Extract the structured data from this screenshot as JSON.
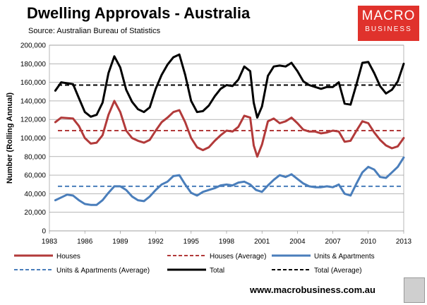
{
  "title": "Dwelling Approvals - Australia",
  "source": "Source: Australian Bureau of Statistics",
  "logo": {
    "line1": "MACRO",
    "line2": "BUSINESS",
    "color": "#e0322c"
  },
  "website": "www.macrobusiness.com.au",
  "chart_data": {
    "type": "line",
    "ylabel": "Number (Rolling Annual)",
    "xlim": [
      1983,
      2013
    ],
    "ylim": [
      0,
      200000
    ],
    "xticks": [
      1983,
      1986,
      1989,
      1992,
      1995,
      1998,
      2001,
      2004,
      2007,
      2010,
      2013
    ],
    "yticks": [
      0,
      20000,
      40000,
      60000,
      80000,
      100000,
      120000,
      140000,
      160000,
      180000,
      200000
    ],
    "ytick_labels": [
      "0",
      "20,000",
      "40,000",
      "60,000",
      "80,000",
      "100,000",
      "120,000",
      "140,000",
      "160,000",
      "180,000",
      "200,000"
    ],
    "grid": true,
    "legend_position": "bottom",
    "series": [
      {
        "name": "Houses",
        "color": "#b23a3a",
        "style": "solid",
        "points": [
          [
            1983.5,
            117000
          ],
          [
            1984,
            122000
          ],
          [
            1985,
            121000
          ],
          [
            1985.5,
            113000
          ],
          [
            1986,
            100000
          ],
          [
            1986.5,
            94000
          ],
          [
            1987,
            95000
          ],
          [
            1987.5,
            103000
          ],
          [
            1988,
            125000
          ],
          [
            1988.5,
            140000
          ],
          [
            1989,
            128000
          ],
          [
            1989.5,
            108000
          ],
          [
            1990,
            100000
          ],
          [
            1990.5,
            97000
          ],
          [
            1991,
            95000
          ],
          [
            1991.5,
            98000
          ],
          [
            1992,
            108000
          ],
          [
            1992.5,
            117000
          ],
          [
            1993,
            122000
          ],
          [
            1993.5,
            128000
          ],
          [
            1994,
            130000
          ],
          [
            1994.5,
            117000
          ],
          [
            1995,
            100000
          ],
          [
            1995.5,
            90000
          ],
          [
            1996,
            87000
          ],
          [
            1996.5,
            90000
          ],
          [
            1997,
            97000
          ],
          [
            1997.5,
            103000
          ],
          [
            1998,
            108000
          ],
          [
            1998.5,
            107000
          ],
          [
            1999,
            112000
          ],
          [
            1999.5,
            124000
          ],
          [
            2000,
            122000
          ],
          [
            2000.3,
            92000
          ],
          [
            2000.6,
            80000
          ],
          [
            2001,
            93000
          ],
          [
            2001.5,
            118000
          ],
          [
            2002,
            121000
          ],
          [
            2002.5,
            116000
          ],
          [
            2003,
            118000
          ],
          [
            2003.5,
            122000
          ],
          [
            2004,
            116000
          ],
          [
            2004.5,
            109000
          ],
          [
            2005,
            107000
          ],
          [
            2005.5,
            107000
          ],
          [
            2006,
            105000
          ],
          [
            2006.5,
            106000
          ],
          [
            2007,
            108000
          ],
          [
            2007.5,
            107000
          ],
          [
            2008,
            96000
          ],
          [
            2008.5,
            97000
          ],
          [
            2009,
            108000
          ],
          [
            2009.5,
            118000
          ],
          [
            2010,
            116000
          ],
          [
            2010.5,
            106000
          ],
          [
            2011,
            98000
          ],
          [
            2011.5,
            92000
          ],
          [
            2012,
            89000
          ],
          [
            2012.5,
            91000
          ],
          [
            2013,
            100000
          ]
        ]
      },
      {
        "name": "Houses (Average)",
        "color": "#b23a3a",
        "style": "dashed",
        "value": 108000
      },
      {
        "name": "Units & Apartments",
        "color": "#4a7ebb",
        "style": "solid",
        "points": [
          [
            1983.5,
            33000
          ],
          [
            1984,
            36000
          ],
          [
            1984.5,
            39000
          ],
          [
            1985,
            38000
          ],
          [
            1985.5,
            33000
          ],
          [
            1986,
            29000
          ],
          [
            1986.5,
            28000
          ],
          [
            1987,
            28000
          ],
          [
            1987.5,
            33000
          ],
          [
            1988,
            41000
          ],
          [
            1988.5,
            48000
          ],
          [
            1989,
            48000
          ],
          [
            1989.5,
            44000
          ],
          [
            1990,
            37000
          ],
          [
            1990.5,
            33000
          ],
          [
            1991,
            32000
          ],
          [
            1991.5,
            37000
          ],
          [
            1992,
            44000
          ],
          [
            1992.5,
            50000
          ],
          [
            1993,
            53000
          ],
          [
            1993.5,
            59000
          ],
          [
            1994,
            60000
          ],
          [
            1994.5,
            50000
          ],
          [
            1995,
            41000
          ],
          [
            1995.5,
            38000
          ],
          [
            1996,
            42000
          ],
          [
            1996.5,
            44000
          ],
          [
            1997,
            46000
          ],
          [
            1997.5,
            49000
          ],
          [
            1998,
            50000
          ],
          [
            1998.5,
            49000
          ],
          [
            1999,
            52000
          ],
          [
            1999.5,
            53000
          ],
          [
            2000,
            50000
          ],
          [
            2000.5,
            44000
          ],
          [
            2001,
            42000
          ],
          [
            2001.5,
            49000
          ],
          [
            2002,
            55000
          ],
          [
            2002.5,
            60000
          ],
          [
            2003,
            58000
          ],
          [
            2003.5,
            61000
          ],
          [
            2004,
            56000
          ],
          [
            2004.5,
            51000
          ],
          [
            2005,
            48000
          ],
          [
            2005.5,
            47000
          ],
          [
            2006,
            47000
          ],
          [
            2006.5,
            48000
          ],
          [
            2007,
            47000
          ],
          [
            2007.5,
            50000
          ],
          [
            2008,
            40000
          ],
          [
            2008.5,
            38000
          ],
          [
            2009,
            51000
          ],
          [
            2009.5,
            63000
          ],
          [
            2010,
            69000
          ],
          [
            2010.5,
            66000
          ],
          [
            2011,
            58000
          ],
          [
            2011.5,
            57000
          ],
          [
            2012,
            63000
          ],
          [
            2012.5,
            69000
          ],
          [
            2013,
            79000
          ]
        ]
      },
      {
        "name": "Units & Apartments (Average)",
        "color": "#4a7ebb",
        "style": "dashed",
        "value": 48000
      },
      {
        "name": "Total",
        "color": "#000000",
        "style": "solid",
        "points": [
          [
            1983.5,
            151000
          ],
          [
            1984,
            160000
          ],
          [
            1985,
            158000
          ],
          [
            1985.5,
            143000
          ],
          [
            1986,
            128000
          ],
          [
            1986.5,
            123000
          ],
          [
            1987,
            125000
          ],
          [
            1987.5,
            138000
          ],
          [
            1988,
            170000
          ],
          [
            1988.5,
            188000
          ],
          [
            1989,
            176000
          ],
          [
            1989.5,
            152000
          ],
          [
            1990,
            139000
          ],
          [
            1990.5,
            131000
          ],
          [
            1991,
            128000
          ],
          [
            1991.5,
            133000
          ],
          [
            1992,
            153000
          ],
          [
            1992.5,
            168000
          ],
          [
            1993,
            179000
          ],
          [
            1993.5,
            187000
          ],
          [
            1994,
            190000
          ],
          [
            1994.5,
            168000
          ],
          [
            1995,
            140000
          ],
          [
            1995.5,
            128000
          ],
          [
            1996,
            129000
          ],
          [
            1996.5,
            135000
          ],
          [
            1997,
            145000
          ],
          [
            1997.5,
            153000
          ],
          [
            1998,
            157000
          ],
          [
            1998.5,
            156000
          ],
          [
            1999,
            163000
          ],
          [
            1999.5,
            177000
          ],
          [
            2000,
            172000
          ],
          [
            2000.3,
            138000
          ],
          [
            2000.6,
            122000
          ],
          [
            2001,
            134000
          ],
          [
            2001.5,
            167000
          ],
          [
            2002,
            177000
          ],
          [
            2002.5,
            178000
          ],
          [
            2003,
            177000
          ],
          [
            2003.5,
            181000
          ],
          [
            2004,
            172000
          ],
          [
            2004.5,
            161000
          ],
          [
            2005,
            157000
          ],
          [
            2005.5,
            155000
          ],
          [
            2006,
            153000
          ],
          [
            2006.5,
            155000
          ],
          [
            2007,
            155000
          ],
          [
            2007.5,
            160000
          ],
          [
            2008,
            137000
          ],
          [
            2008.5,
            136000
          ],
          [
            2009,
            158000
          ],
          [
            2009.5,
            181000
          ],
          [
            2010,
            182000
          ],
          [
            2010.5,
            170000
          ],
          [
            2011,
            156000
          ],
          [
            2011.5,
            148000
          ],
          [
            2012,
            152000
          ],
          [
            2012.5,
            161000
          ],
          [
            2013,
            180000
          ]
        ]
      },
      {
        "name": "Total (Average)",
        "color": "#000000",
        "style": "dashed",
        "value": 157000
      }
    ]
  }
}
